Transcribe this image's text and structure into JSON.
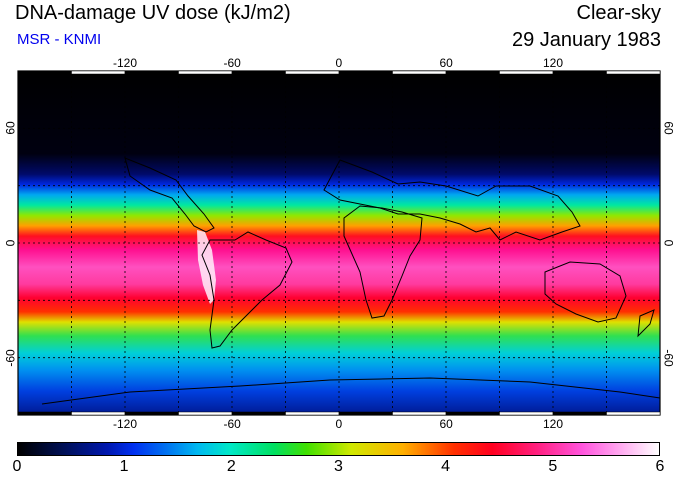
{
  "header": {
    "title": "DNA-damage UV dose (kJ/m2)",
    "source": "MSR - KNMI",
    "sky_condition": "Clear-sky",
    "date": "29 January 1983"
  },
  "map": {
    "lon_labels": [
      "-120",
      "-60",
      "0",
      "60",
      "120"
    ],
    "lat_labels": [
      "60",
      "0",
      "-60"
    ],
    "lon_range": [
      -180,
      180
    ],
    "lat_range": [
      -90,
      90
    ],
    "gridline_longitudes": [
      -150,
      -120,
      -90,
      -60,
      -30,
      0,
      30,
      60,
      90,
      120,
      150
    ],
    "gridline_latitudes": [
      -60,
      -30,
      0,
      30,
      60
    ]
  },
  "colorbar": {
    "ticks": [
      "0",
      "1",
      "2",
      "3",
      "4",
      "5",
      "6"
    ],
    "min": 0,
    "max": 6
  }
}
